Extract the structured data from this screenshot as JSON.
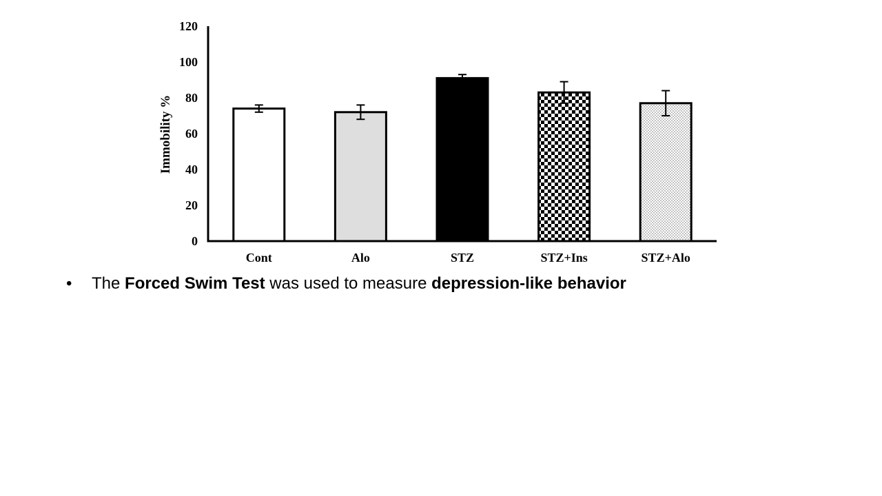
{
  "chart_data": {
    "type": "bar",
    "categories": [
      "Cont",
      "Alo",
      "STZ",
      "STZ+Ins",
      "STZ+Alo"
    ],
    "values": [
      74,
      72,
      91,
      83,
      77
    ],
    "errors": [
      2,
      4,
      2,
      6,
      7
    ],
    "ylabel": "Immobility %",
    "xlabel": "",
    "ylim": [
      0,
      120
    ],
    "yticks": [
      0,
      20,
      40,
      60,
      80,
      100,
      120
    ],
    "grid": false,
    "fills": [
      "white",
      "light-gray",
      "black",
      "checkerboard",
      "dotted"
    ],
    "colors": {
      "gray": "#dedede",
      "black": "#000000",
      "white": "#ffffff"
    }
  },
  "bullet": {
    "symbol": "•",
    "text_1": "The ",
    "bold_1": "Forced Swim Test",
    "text_2": " was used to measure ",
    "bold_2": "depression-like behavior"
  }
}
